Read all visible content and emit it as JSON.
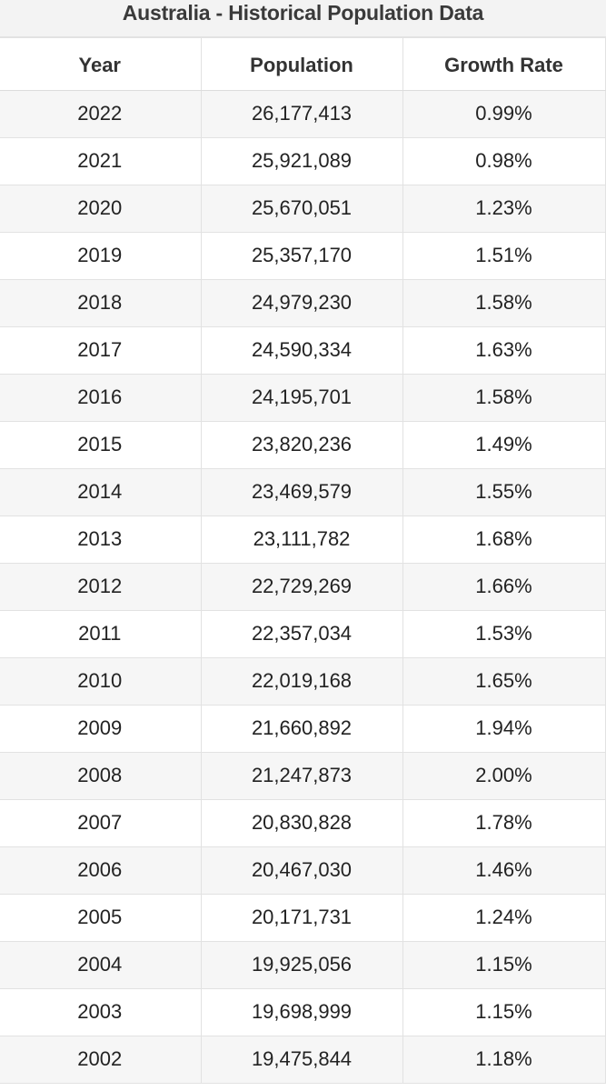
{
  "title": "Australia - Historical Population Data",
  "table": {
    "headers": [
      "Year",
      "Population",
      "Growth Rate"
    ],
    "rows": [
      [
        "2022",
        "26,177,413",
        "0.99%"
      ],
      [
        "2021",
        "25,921,089",
        "0.98%"
      ],
      [
        "2020",
        "25,670,051",
        "1.23%"
      ],
      [
        "2019",
        "25,357,170",
        "1.51%"
      ],
      [
        "2018",
        "24,979,230",
        "1.58%"
      ],
      [
        "2017",
        "24,590,334",
        "1.63%"
      ],
      [
        "2016",
        "24,195,701",
        "1.58%"
      ],
      [
        "2015",
        "23,820,236",
        "1.49%"
      ],
      [
        "2014",
        "23,469,579",
        "1.55%"
      ],
      [
        "2013",
        "23,111,782",
        "1.68%"
      ],
      [
        "2012",
        "22,729,269",
        "1.66%"
      ],
      [
        "2011",
        "22,357,034",
        "1.53%"
      ],
      [
        "2010",
        "22,019,168",
        "1.65%"
      ],
      [
        "2009",
        "21,660,892",
        "1.94%"
      ],
      [
        "2008",
        "21,247,873",
        "2.00%"
      ],
      [
        "2007",
        "20,830,828",
        "1.78%"
      ],
      [
        "2006",
        "20,467,030",
        "1.46%"
      ],
      [
        "2005",
        "20,171,731",
        "1.24%"
      ],
      [
        "2004",
        "19,925,056",
        "1.15%"
      ],
      [
        "2003",
        "19,698,999",
        "1.15%"
      ],
      [
        "2002",
        "19,475,844",
        "1.18%"
      ]
    ]
  },
  "colors": {
    "stripe_row": "#f6f6f6",
    "plain_row": "#ffffff",
    "grid_line": "#e2e2e2",
    "title_bar": "#f3f3f3"
  }
}
